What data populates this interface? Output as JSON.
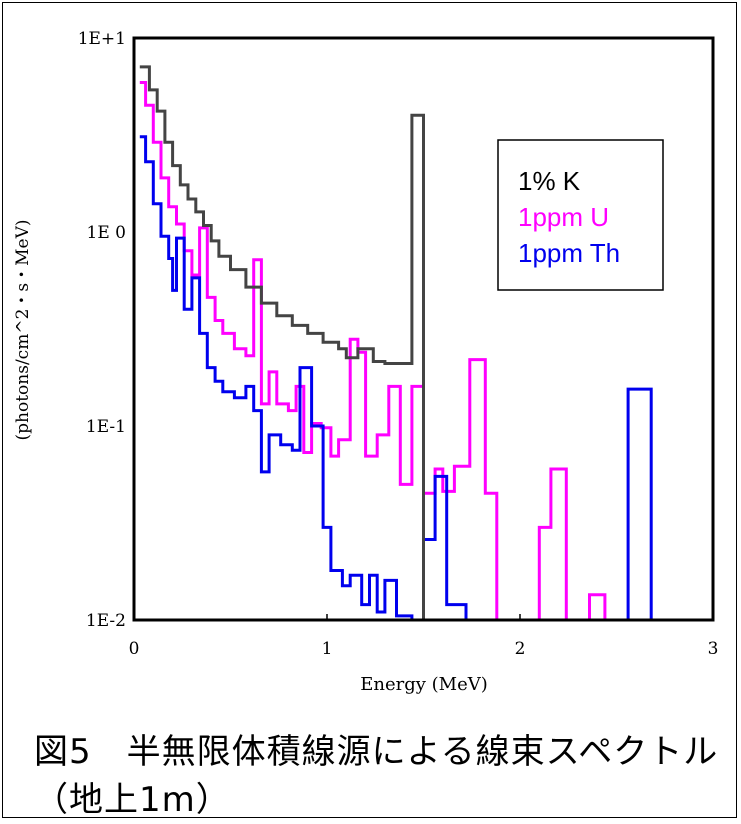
{
  "chart_data": {
    "type": "line",
    "title": "",
    "xlabel": "Energy (MeV)",
    "ylabel": "(photons/cm^2・s・MeV)",
    "xlim": [
      0,
      3
    ],
    "ylim": [
      0.01,
      10
    ],
    "yscale": "log",
    "grid": false,
    "legend_position": "top-right",
    "x_ticks": [
      "0",
      "1",
      "2",
      "3"
    ],
    "y_ticks": [
      "1E-2",
      "1E-1",
      "1E 0",
      "1E+1"
    ],
    "y_tick_values": [
      0.01,
      0.1,
      1,
      10
    ],
    "series": [
      {
        "name": "1% K",
        "color": "#444444",
        "points": [
          [
            0.03,
            7.1
          ],
          [
            0.08,
            5.4
          ],
          [
            0.12,
            4.2
          ],
          [
            0.16,
            2.9
          ],
          [
            0.2,
            2.2
          ],
          [
            0.24,
            1.75
          ],
          [
            0.28,
            1.48
          ],
          [
            0.32,
            1.27
          ],
          [
            0.36,
            1.08
          ],
          [
            0.4,
            0.9
          ],
          [
            0.44,
            0.75
          ],
          [
            0.5,
            0.64
          ],
          [
            0.58,
            0.52
          ],
          [
            0.66,
            0.43
          ],
          [
            0.74,
            0.37
          ],
          [
            0.82,
            0.33
          ],
          [
            0.9,
            0.3
          ],
          [
            0.98,
            0.27
          ],
          [
            1.06,
            0.25
          ],
          [
            1.1,
            0.225
          ],
          [
            1.16,
            0.25
          ],
          [
            1.24,
            0.215
          ],
          [
            1.3,
            0.21
          ],
          [
            1.36,
            0.21
          ],
          [
            1.44,
            0.21
          ],
          [
            1.44,
            4.0
          ],
          [
            1.5,
            4.0
          ],
          [
            1.5,
            0.01
          ]
        ]
      },
      {
        "name": "1ppm U",
        "color": "#ff00ff",
        "points": [
          [
            0.03,
            5.9
          ],
          [
            0.06,
            4.5
          ],
          [
            0.1,
            2.9
          ],
          [
            0.14,
            1.9
          ],
          [
            0.18,
            1.35
          ],
          [
            0.22,
            1.1
          ],
          [
            0.26,
            0.8
          ],
          [
            0.3,
            0.6
          ],
          [
            0.34,
            1.05
          ],
          [
            0.38,
            0.46
          ],
          [
            0.42,
            0.35
          ],
          [
            0.46,
            0.3
          ],
          [
            0.52,
            0.25
          ],
          [
            0.58,
            0.23
          ],
          [
            0.62,
            0.72
          ],
          [
            0.66,
            0.13
          ],
          [
            0.7,
            0.19
          ],
          [
            0.74,
            0.13
          ],
          [
            0.8,
            0.12
          ],
          [
            0.84,
            0.16
          ],
          [
            0.88,
            0.073
          ],
          [
            0.92,
            0.103
          ],
          [
            0.97,
            0.098
          ],
          [
            1.02,
            0.07
          ],
          [
            1.06,
            0.085
          ],
          [
            1.12,
            0.28
          ],
          [
            1.16,
            0.24
          ],
          [
            1.2,
            0.07
          ],
          [
            1.26,
            0.09
          ],
          [
            1.32,
            0.16
          ],
          [
            1.38,
            0.05
          ],
          [
            1.44,
            0.16
          ],
          [
            1.5,
            0.045
          ],
          [
            1.56,
            0.06
          ],
          [
            1.6,
            0.046
          ],
          [
            1.66,
            0.062
          ],
          [
            1.74,
            0.22
          ],
          [
            1.82,
            0.045
          ],
          [
            1.88,
            0.01
          ],
          [
            2.02,
            0.01
          ],
          [
            2.1,
            0.03
          ],
          [
            2.16,
            0.06
          ],
          [
            2.24,
            0.01
          ],
          [
            2.36,
            0.0135
          ],
          [
            2.44,
            0.01
          ]
        ]
      },
      {
        "name": "1ppm Th",
        "color": "#0000ee",
        "points": [
          [
            0.03,
            3.1
          ],
          [
            0.06,
            2.3
          ],
          [
            0.1,
            1.4
          ],
          [
            0.14,
            0.95
          ],
          [
            0.18,
            0.73
          ],
          [
            0.2,
            0.5
          ],
          [
            0.22,
            0.93
          ],
          [
            0.26,
            0.4
          ],
          [
            0.3,
            0.58
          ],
          [
            0.34,
            0.3
          ],
          [
            0.38,
            0.2
          ],
          [
            0.42,
            0.17
          ],
          [
            0.46,
            0.15
          ],
          [
            0.52,
            0.14
          ],
          [
            0.58,
            0.16
          ],
          [
            0.62,
            0.12
          ],
          [
            0.66,
            0.058
          ],
          [
            0.7,
            0.09
          ],
          [
            0.76,
            0.08
          ],
          [
            0.82,
            0.075
          ],
          [
            0.86,
            0.2
          ],
          [
            0.92,
            0.1
          ],
          [
            0.98,
            0.03
          ],
          [
            1.02,
            0.018
          ],
          [
            1.08,
            0.015
          ],
          [
            1.12,
            0.017
          ],
          [
            1.18,
            0.012
          ],
          [
            1.22,
            0.017
          ],
          [
            1.26,
            0.011
          ],
          [
            1.3,
            0.016
          ],
          [
            1.36,
            0.0105
          ],
          [
            1.42,
            0.0105
          ],
          [
            1.44,
            0.01
          ],
          [
            1.5,
            0.026
          ],
          [
            1.56,
            0.055
          ],
          [
            1.62,
            0.012
          ],
          [
            1.72,
            0.01
          ],
          [
            2.56,
            0.01
          ],
          [
            2.56,
            0.155
          ],
          [
            2.68,
            0.155
          ],
          [
            2.68,
            0.01
          ]
        ]
      }
    ]
  },
  "caption": {
    "line1": "図5　半無限体積線源による線束スペクトル",
    "line2": "（地上1m）"
  }
}
